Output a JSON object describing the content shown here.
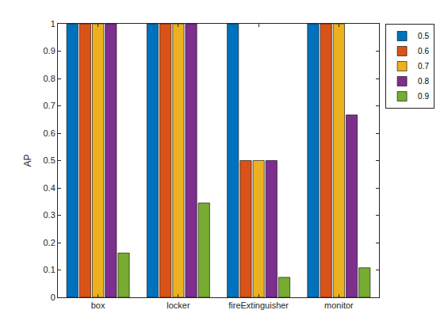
{
  "chart_data": {
    "type": "bar",
    "y_label": "AP",
    "categories": [
      "box",
      "locker",
      "fireExtinguisher",
      "monitor"
    ],
    "series": [
      {
        "name": "0.5",
        "color": "#0072BD",
        "values": [
          1,
          1,
          1,
          1
        ]
      },
      {
        "name": "0.6",
        "color": "#D95319",
        "values": [
          1,
          1,
          0.5,
          1
        ]
      },
      {
        "name": "0.7",
        "color": "#EDB120",
        "values": [
          1,
          1,
          0.5,
          1
        ]
      },
      {
        "name": "0.8",
        "color": "#7E2F8E",
        "values": [
          1,
          1,
          0.5,
          0.667
        ]
      },
      {
        "name": "0.9",
        "color": "#77AC30",
        "values": [
          0.162,
          0.345,
          0.073,
          0.108
        ]
      }
    ],
    "ylim": [
      0,
      1
    ],
    "yticks": [
      0,
      0.1,
      0.2,
      0.3,
      0.4,
      0.5,
      0.6,
      0.7,
      0.8,
      0.9,
      1
    ],
    "grid": false,
    "legend": "top right"
  }
}
